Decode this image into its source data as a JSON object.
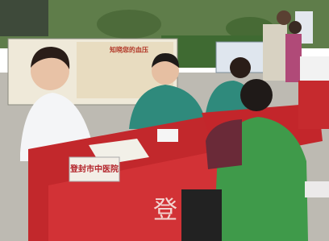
{
  "scene": {
    "poster_title": "知晓您的血压",
    "table_sign": "登封市中医院",
    "tablecloth_text": "登"
  }
}
